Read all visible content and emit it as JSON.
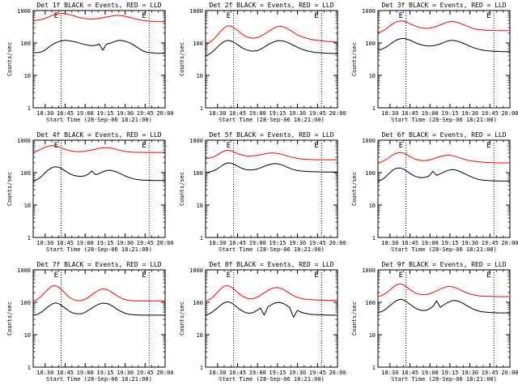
{
  "colors": {
    "events": "#000000",
    "lld": "#ff0000",
    "axis": "#000000",
    "background": "#ffffff"
  },
  "chart_data": [
    {
      "type": "line",
      "title": "Det 1f BLACK = Events, RED = LLD",
      "ylabel": "Counts/sec",
      "xlabel": "Start Time (28-Sep-06 18:21:00)",
      "xticks": [
        "18:30",
        "18:45",
        "19:00",
        "19:15",
        "19:30",
        "19:45",
        "20:00"
      ],
      "yticks": [
        "1",
        "10",
        "100",
        "1000"
      ],
      "yscale": "log",
      "ylim": [
        1,
        1000
      ],
      "xlim": [
        0,
        99
      ],
      "markers": [
        {
          "x": 21,
          "label": "E"
        },
        {
          "x": 87,
          "label": "E"
        }
      ],
      "series": [
        {
          "role": "events",
          "values": [
            50,
            50,
            52,
            58,
            70,
            85,
            100,
            110,
            118,
            120,
            116,
            110,
            104,
            96,
            90,
            85,
            82,
            84,
            92,
            60,
            92,
            98,
            108,
            118,
            120,
            114,
            104,
            92,
            78,
            66,
            56,
            52,
            50,
            49,
            48,
            48,
            48
          ]
        },
        {
          "role": "lld",
          "values": [
            480,
            500,
            520,
            560,
            620,
            690,
            760,
            800,
            820,
            790,
            740,
            690,
            640,
            600,
            570,
            550,
            545,
            555,
            575,
            600,
            630,
            660,
            690,
            710,
            700,
            670,
            630,
            590,
            550,
            520,
            495,
            480,
            470,
            462,
            458,
            455,
            452
          ]
        }
      ]
    },
    {
      "type": "line",
      "title": "Det 2f BLACK = Events, RED = LLD",
      "ylabel": "Counts/sec",
      "xlabel": "Start Time (28-Sep-06 18:21:00)",
      "xticks": [
        "18:30",
        "18:45",
        "19:00",
        "19:15",
        "19:30",
        "19:45",
        "20:00"
      ],
      "yticks": [
        "1",
        "10",
        "100",
        "1000"
      ],
      "yscale": "log",
      "ylim": [
        1,
        1000
      ],
      "xlim": [
        0,
        99
      ],
      "markers": [
        {
          "x": 21,
          "label": "E"
        },
        {
          "x": 87,
          "label": "E"
        }
      ],
      "series": [
        {
          "role": "events",
          "values": [
            40,
            45,
            55,
            70,
            90,
            110,
            120,
            115,
            100,
            85,
            70,
            62,
            58,
            56,
            58,
            64,
            74,
            88,
            100,
            112,
            118,
            116,
            108,
            96,
            84,
            74,
            66,
            60,
            56,
            53,
            51,
            50,
            49,
            48,
            48,
            47,
            47
          ]
        },
        {
          "role": "lld",
          "values": [
            90,
            100,
            125,
            160,
            220,
            290,
            340,
            330,
            280,
            230,
            185,
            160,
            145,
            140,
            145,
            160,
            185,
            220,
            260,
            300,
            330,
            320,
            290,
            250,
            210,
            180,
            160,
            145,
            135,
            128,
            122,
            118,
            115,
            112,
            110,
            108,
            106
          ]
        }
      ]
    },
    {
      "type": "line",
      "title": "Det 3f BLACK = Events, RED = LLD",
      "ylabel": "Counts/sec",
      "xlabel": "Start Time (28-Sep-06 18:21:00)",
      "xticks": [
        "18:30",
        "18:45",
        "19:00",
        "19:15",
        "19:30",
        "19:45",
        "20:00"
      ],
      "yticks": [
        "1",
        "10",
        "100",
        "1000"
      ],
      "yscale": "log",
      "ylim": [
        1,
        1000
      ],
      "xlim": [
        0,
        99
      ],
      "markers": [
        {
          "x": 21,
          "label": "E"
        },
        {
          "x": 87,
          "label": "E"
        }
      ],
      "series": [
        {
          "role": "events",
          "values": [
            60,
            64,
            72,
            86,
            104,
            122,
            134,
            138,
            130,
            118,
            104,
            94,
            86,
            82,
            80,
            82,
            86,
            94,
            104,
            114,
            120,
            118,
            110,
            100,
            90,
            80,
            72,
            66,
            62,
            59,
            57,
            56,
            55,
            55,
            54,
            54,
            54
          ]
        },
        {
          "role": "lld",
          "values": [
            210,
            225,
            260,
            320,
            390,
            450,
            480,
            470,
            430,
            380,
            340,
            310,
            290,
            280,
            285,
            300,
            325,
            360,
            400,
            440,
            460,
            450,
            420,
            380,
            340,
            305,
            280,
            265,
            255,
            250,
            246,
            244,
            242,
            240,
            240,
            240,
            240
          ]
        }
      ]
    },
    {
      "type": "line",
      "title": "Det 4f BLACK = Events, RED = LLD",
      "ylabel": "Counts/sec",
      "xlabel": "Start Time (28-Sep-06 18:21:00)",
      "xticks": [
        "18:30",
        "18:45",
        "19:00",
        "19:15",
        "19:30",
        "19:45",
        "20:00"
      ],
      "yticks": [
        "1",
        "10",
        "100",
        "1000"
      ],
      "yscale": "log",
      "ylim": [
        1,
        1000
      ],
      "xlim": [
        0,
        99
      ],
      "markers": [
        {
          "x": 21,
          "label": "E"
        },
        {
          "x": 87,
          "label": "E"
        }
      ],
      "series": [
        {
          "role": "events",
          "values": [
            55,
            60,
            72,
            92,
            118,
            140,
            152,
            146,
            128,
            108,
            92,
            82,
            78,
            76,
            80,
            88,
            112,
            86,
            94,
            106,
            116,
            118,
            112,
            102,
            90,
            80,
            72,
            66,
            62,
            60,
            59,
            58,
            58,
            57,
            57,
            57,
            57
          ]
        },
        {
          "role": "lld",
          "values": [
            430,
            460,
            520,
            590,
            650,
            680,
            670,
            620,
            560,
            510,
            475,
            455,
            445,
            445,
            455,
            475,
            500,
            530,
            560,
            585,
            590,
            575,
            545,
            510,
            480,
            455,
            440,
            430,
            425,
            422,
            420,
            420,
            420,
            420,
            420,
            420,
            420
          ]
        }
      ]
    },
    {
      "type": "line",
      "title": "Det 5f BLACK = Events, RED = LLD",
      "ylabel": "Counts/sec",
      "xlabel": "Start Time (28-Sep-06 18:21:00)",
      "xticks": [
        "18:30",
        "18:45",
        "19:00",
        "19:15",
        "19:30",
        "19:45",
        "20:00"
      ],
      "yticks": [
        "1",
        "10",
        "100",
        "1000"
      ],
      "yscale": "log",
      "ylim": [
        1,
        1000
      ],
      "xlim": [
        0,
        99
      ],
      "markers": [
        {
          "x": 21,
          "label": "E"
        },
        {
          "x": 87,
          "label": "E"
        }
      ],
      "series": [
        {
          "role": "events",
          "values": [
            100,
            104,
            112,
            126,
            150,
            180,
            200,
            196,
            176,
            152,
            134,
            124,
            120,
            122,
            128,
            140,
            156,
            172,
            184,
            190,
            184,
            170,
            152,
            136,
            124,
            116,
            112,
            110,
            108,
            107,
            106,
            106,
            105,
            105,
            105,
            105,
            105
          ]
        },
        {
          "role": "lld",
          "values": [
            270,
            280,
            300,
            340,
            400,
            460,
            490,
            470,
            420,
            375,
            345,
            330,
            325,
            330,
            340,
            355,
            375,
            395,
            405,
            400,
            385,
            360,
            335,
            310,
            290,
            275,
            265,
            258,
            254,
            252,
            250,
            250,
            250,
            250,
            250,
            250,
            250
          ]
        }
      ]
    },
    {
      "type": "line",
      "title": "Det 6f BLACK = Events, RED = LLD",
      "ylabel": "Counts/sec",
      "xlabel": "Start Time (28-Sep-06 18:21:00)",
      "xticks": [
        "18:30",
        "18:45",
        "19:00",
        "19:15",
        "19:30",
        "19:45",
        "20:00"
      ],
      "yticks": [
        "1",
        "10",
        "100",
        "1000"
      ],
      "yscale": "log",
      "ylim": [
        1,
        1000
      ],
      "xlim": [
        0,
        99
      ],
      "markers": [
        {
          "x": 21,
          "label": "E"
        },
        {
          "x": 87,
          "label": "E"
        }
      ],
      "series": [
        {
          "role": "events",
          "values": [
            55,
            60,
            72,
            94,
            118,
            136,
            140,
            128,
            108,
            90,
            78,
            72,
            70,
            72,
            80,
            110,
            82,
            92,
            104,
            116,
            124,
            122,
            112,
            100,
            88,
            78,
            70,
            64,
            60,
            58,
            57,
            56,
            56,
            55,
            55,
            55,
            55
          ]
        },
        {
          "role": "lld",
          "values": [
            200,
            215,
            245,
            290,
            350,
            400,
            420,
            400,
            350,
            300,
            265,
            245,
            235,
            235,
            245,
            265,
            290,
            315,
            335,
            345,
            340,
            320,
            295,
            270,
            250,
            235,
            225,
            218,
            212,
            208,
            205,
            203,
            201,
            200,
            200,
            200,
            200
          ]
        }
      ]
    },
    {
      "type": "line",
      "title": "Det 7f BLACK = Events, RED = LLD",
      "ylabel": "Counts/sec",
      "xlabel": "Start Time (28-Sep-06 18:21:00)",
      "xticks": [
        "18:30",
        "18:45",
        "19:00",
        "19:15",
        "19:30",
        "19:45",
        "20:00"
      ],
      "yticks": [
        "1",
        "10",
        "100",
        "1000"
      ],
      "yscale": "log",
      "ylim": [
        1,
        1000
      ],
      "xlim": [
        0,
        99
      ],
      "markers": [
        {
          "x": 21,
          "label": "E"
        },
        {
          "x": 87,
          "label": "E"
        }
      ],
      "series": [
        {
          "role": "events",
          "values": [
            40,
            42,
            48,
            58,
            72,
            86,
            96,
            90,
            76,
            62,
            52,
            46,
            44,
            44,
            48,
            56,
            66,
            78,
            88,
            94,
            92,
            84,
            72,
            60,
            52,
            46,
            43,
            42,
            41,
            40,
            40,
            40,
            40,
            40,
            40,
            40,
            40
          ]
        },
        {
          "role": "lld",
          "values": [
            110,
            120,
            145,
            190,
            250,
            310,
            330,
            290,
            230,
            175,
            140,
            120,
            112,
            112,
            122,
            140,
            170,
            205,
            240,
            260,
            250,
            220,
            185,
            155,
            135,
            122,
            115,
            112,
            110,
            110,
            110,
            110,
            110,
            110,
            110,
            110,
            110
          ]
        }
      ]
    },
    {
      "type": "line",
      "title": "Det 8f BLACK = Events, RED = LLD",
      "ylabel": "Counts/sec",
      "xlabel": "Start Time (28-Sep-06 18:21:00)",
      "xticks": [
        "18:30",
        "18:45",
        "19:00",
        "19:15",
        "19:30",
        "19:45",
        "20:00"
      ],
      "yticks": [
        "1",
        "10",
        "100",
        "1000"
      ],
      "yscale": "log",
      "ylim": [
        1,
        1000
      ],
      "xlim": [
        0,
        99
      ],
      "markers": [
        {
          "x": 21,
          "label": "E"
        },
        {
          "x": 87,
          "label": "E"
        }
      ],
      "series": [
        {
          "role": "events",
          "values": [
            40,
            44,
            52,
            64,
            80,
            96,
            104,
            96,
            80,
            64,
            54,
            48,
            46,
            48,
            56,
            66,
            40,
            72,
            84,
            96,
            100,
            94,
            82,
            68,
            34,
            56,
            50,
            46,
            44,
            42,
            42,
            41,
            41,
            40,
            40,
            40,
            40
          ]
        },
        {
          "role": "lld",
          "values": [
            110,
            120,
            145,
            190,
            250,
            310,
            330,
            295,
            240,
            190,
            155,
            135,
            128,
            130,
            142,
            165,
            195,
            230,
            265,
            285,
            280,
            255,
            220,
            185,
            160,
            142,
            132,
            126,
            122,
            120,
            118,
            117,
            116,
            115,
            115,
            115,
            115
          ]
        }
      ]
    },
    {
      "type": "line",
      "title": "Det 9f BLACK = Events, RED = LLD",
      "ylabel": "Counts/sec",
      "xlabel": "Start Time (28-Sep-06 18:21:00)",
      "xticks": [
        "18:30",
        "18:45",
        "19:00",
        "19:15",
        "19:30",
        "19:45",
        "20:00"
      ],
      "yticks": [
        "1",
        "10",
        "100",
        "1000"
      ],
      "yscale": "log",
      "ylim": [
        1,
        1000
      ],
      "xlim": [
        0,
        99
      ],
      "markers": [
        {
          "x": 21,
          "label": "E"
        },
        {
          "x": 87,
          "label": "E"
        }
      ],
      "series": [
        {
          "role": "events",
          "values": [
            48,
            52,
            60,
            74,
            92,
            112,
            124,
            118,
            100,
            82,
            68,
            60,
            56,
            56,
            62,
            74,
            110,
            70,
            84,
            98,
            110,
            114,
            108,
            96,
            82,
            70,
            62,
            56,
            52,
            50,
            49,
            48,
            48,
            47,
            47,
            47,
            47
          ]
        },
        {
          "role": "lld",
          "values": [
            150,
            160,
            185,
            225,
            285,
            345,
            370,
            340,
            285,
            235,
            200,
            180,
            172,
            172,
            182,
            200,
            225,
            255,
            285,
            305,
            305,
            285,
            255,
            225,
            200,
            182,
            170,
            162,
            157,
            154,
            152,
            151,
            150,
            150,
            150,
            150,
            150
          ]
        }
      ]
    }
  ]
}
